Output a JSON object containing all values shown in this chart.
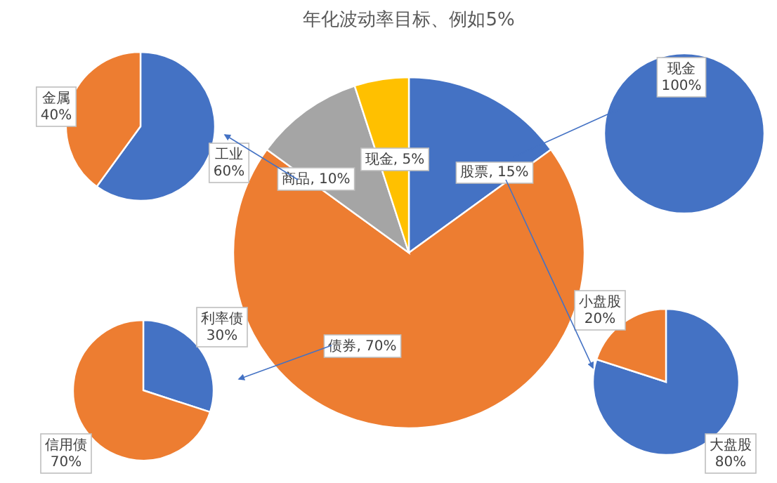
{
  "chart_data": [
    {
      "type": "pie",
      "title": "年化波动率目标、例如5%",
      "categories": [
        "股票",
        "债券",
        "商品",
        "现金"
      ],
      "values": [
        15,
        70,
        10,
        5
      ],
      "value_labels": [
        "15%",
        "70%",
        "10%",
        "5%"
      ],
      "colors": [
        "#4472c4",
        "#ed7d31",
        "#a5a5a5",
        "#ffc000"
      ]
    },
    {
      "type": "pie",
      "categories": [
        "工业",
        "金属"
      ],
      "values": [
        60,
        40
      ],
      "value_labels": [
        "60%",
        "40%"
      ],
      "colors": [
        "#4472c4",
        "#ed7d31"
      ]
    },
    {
      "type": "pie",
      "categories": [
        "现金"
      ],
      "values": [
        100
      ],
      "value_labels": [
        "100%"
      ],
      "colors": [
        "#4472c4"
      ]
    },
    {
      "type": "pie",
      "categories": [
        "利率债",
        "信用债"
      ],
      "values": [
        30,
        70
      ],
      "value_labels": [
        "30%",
        "70%"
      ],
      "colors": [
        "#4472c4",
        "#ed7d31"
      ]
    },
    {
      "type": "pie",
      "categories": [
        "大盘股",
        "小盘股"
      ],
      "values": [
        80,
        20
      ],
      "value_labels": [
        "80%",
        "20%"
      ],
      "colors": [
        "#4472c4",
        "#ed7d31"
      ]
    }
  ]
}
